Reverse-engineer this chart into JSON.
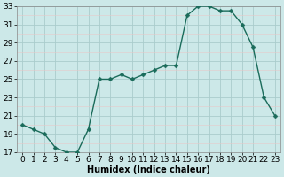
{
  "x": [
    0,
    1,
    2,
    3,
    4,
    5,
    6,
    7,
    8,
    9,
    10,
    11,
    12,
    13,
    14,
    15,
    16,
    17,
    18,
    19,
    20,
    21,
    22,
    23
  ],
  "y": [
    20.0,
    19.5,
    19.0,
    17.5,
    17.0,
    17.0,
    19.5,
    25.0,
    25.0,
    25.5,
    25.0,
    25.5,
    26.0,
    26.5,
    26.5,
    32.0,
    33.0,
    33.0,
    32.5,
    32.5,
    31.0,
    28.5,
    23.0,
    21.0
  ],
  "xlabel": "Humidex (Indice chaleur)",
  "ymin": 17,
  "ymax": 33,
  "xmin": 0,
  "xmax": 23,
  "yticks": [
    17,
    19,
    21,
    23,
    25,
    27,
    29,
    31,
    33
  ],
  "xticks": [
    0,
    1,
    2,
    3,
    4,
    5,
    6,
    7,
    8,
    9,
    10,
    11,
    12,
    13,
    14,
    15,
    16,
    17,
    18,
    19,
    20,
    21,
    22,
    23
  ],
  "line_color": "#1a6b5a",
  "marker_color": "#1a6b5a",
  "bg_color": "#cce8e8",
  "major_grid_color": "#aacccc",
  "minor_grid_color": "#e8c8c8",
  "xlabel_fontsize": 7,
  "tick_fontsize": 6.5,
  "linewidth": 1.0,
  "markersize": 2.5
}
